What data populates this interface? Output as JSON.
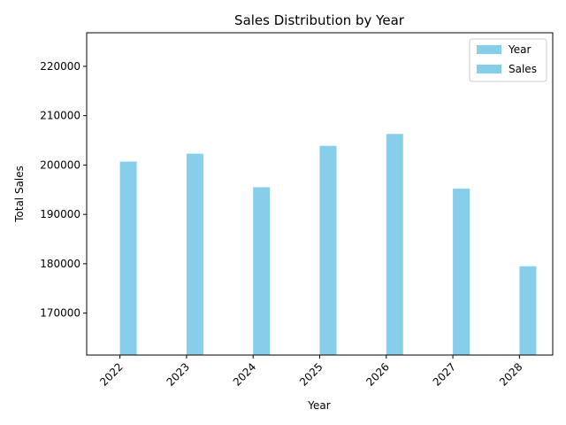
{
  "chart_data": {
    "type": "bar",
    "title": "Sales Distribution by Year",
    "xlabel": "Year",
    "ylabel": "Total Sales",
    "categories": [
      "2022",
      "2023",
      "2024",
      "2025",
      "2026",
      "2027",
      "2028"
    ],
    "series": [
      {
        "name": "Year",
        "values": [
          null,
          null,
          null,
          null,
          null,
          null,
          null
        ],
        "color": "#87CEEB"
      },
      {
        "name": "Sales",
        "values": [
          200700,
          202300,
          195500,
          203900,
          206300,
          195200,
          179500
        ],
        "color": "#87CEEB"
      }
    ],
    "ylim": [
      161500,
      226800
    ],
    "yticks": [
      170000,
      180000,
      190000,
      200000,
      210000,
      220000
    ],
    "legend_position": "top-right",
    "grid": false
  }
}
